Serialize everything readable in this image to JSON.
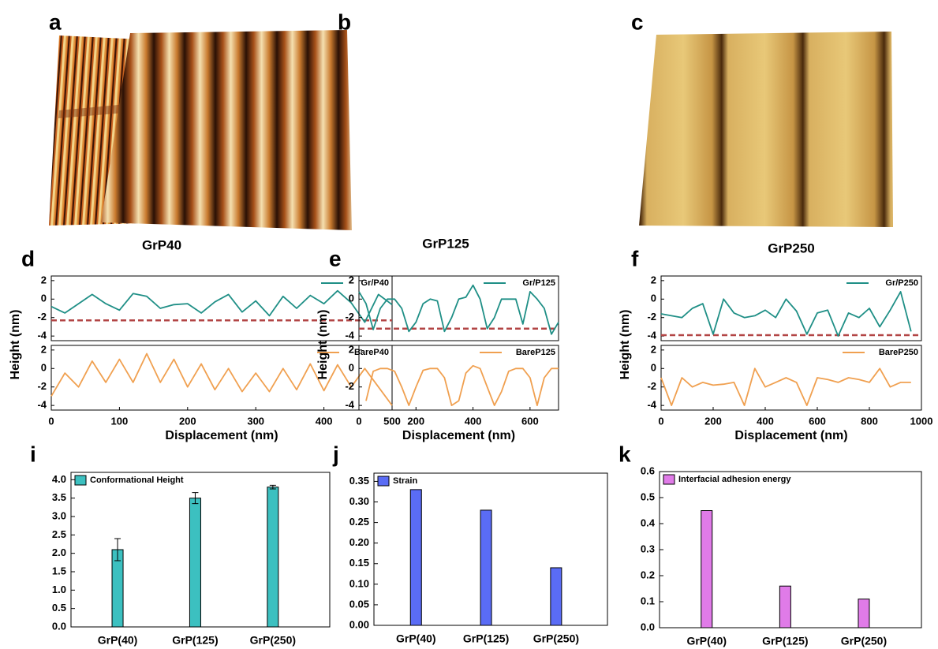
{
  "images": [
    {
      "letter": "a",
      "caption": "GrP40"
    },
    {
      "letter": "b",
      "caption": "GrP125"
    },
    {
      "letter": "c",
      "caption": "GrP250"
    }
  ],
  "chart_data": [
    {
      "type": "line",
      "panel": "d",
      "ylabel": "Height (nm)",
      "xlabel": "Displacement (nm)",
      "x": [
        0,
        20,
        40,
        60,
        80,
        100,
        120,
        140,
        160,
        180,
        200,
        220,
        240,
        260,
        280,
        300,
        320,
        340,
        360,
        380,
        400,
        420,
        440,
        460,
        480,
        500
      ],
      "xlim": [
        0,
        500
      ],
      "xticks": [
        0,
        100,
        200,
        300,
        400,
        500
      ],
      "ylim": [
        -4.5,
        2.5
      ],
      "yticks": [
        -4,
        -2,
        0,
        2
      ],
      "series": [
        {
          "name": "Gr/P40",
          "color": "#1f8f86",
          "baseline": -2.3,
          "baseline_color": "#b24545",
          "values": [
            -0.8,
            -1.5,
            -0.5,
            0.5,
            -0.5,
            -1.2,
            0.6,
            0.3,
            -1,
            -0.6,
            -0.5,
            -1.5,
            -0.3,
            0.5,
            -1.4,
            -0.2,
            -1.8,
            0.3,
            -1.0,
            0.4,
            -0.5,
            0.9,
            -0.4,
            -2.5,
            0.5,
            -0.6
          ]
        },
        {
          "name": "BareP40",
          "color": "#f0a050",
          "values": [
            -3,
            -0.5,
            -2,
            0.8,
            -1.5,
            1,
            -1.5,
            1.6,
            -1.5,
            1,
            -2,
            0.5,
            -2.3,
            0,
            -2.5,
            -0.5,
            -2.5,
            0,
            -2.3,
            0.5,
            -2.4,
            0.4,
            -2,
            0,
            -2,
            -4
          ]
        }
      ]
    },
    {
      "type": "line",
      "panel": "e",
      "ylabel": "Height (nm)",
      "xlabel": "Displacement (nm)",
      "x": [
        0,
        25,
        50,
        75,
        100,
        125,
        150,
        175,
        200,
        225,
        250,
        275,
        300,
        325,
        350,
        375,
        400,
        425,
        450,
        475,
        500,
        525,
        550,
        575,
        600,
        625,
        650,
        675,
        700
      ],
      "xlim": [
        0,
        700
      ],
      "xticks": [
        0,
        200,
        400,
        600
      ],
      "ylim": [
        -4.5,
        2.5
      ],
      "yticks": [
        -4,
        -2,
        0,
        2
      ],
      "series": [
        {
          "name": "Gr/P125",
          "color": "#1f8f86",
          "baseline": -3.2,
          "baseline_color": "#b24545",
          "values": [
            0.8,
            -0.5,
            -3.3,
            -1,
            0,
            0,
            -1,
            -3.5,
            -2.5,
            -0.5,
            0,
            -0.2,
            -3.5,
            -2,
            0,
            0.2,
            1.5,
            0,
            -3.2,
            -2,
            0,
            0,
            0,
            -2.7,
            0.8,
            0,
            -1,
            -3.8,
            -2.5
          ]
        },
        {
          "name": "BareP125",
          "color": "#f0a050",
          "values": [
            null,
            -3.5,
            -0.3,
            0,
            0,
            -0.3,
            -2,
            -4,
            -2,
            -0.2,
            0,
            0,
            -1,
            -4,
            -3.5,
            -0.5,
            0.3,
            0,
            -2,
            -4,
            -2.5,
            -0.3,
            0,
            0,
            -1,
            -4,
            -1,
            0,
            0
          ]
        }
      ]
    },
    {
      "type": "line",
      "panel": "f",
      "ylabel": "Height (nm)",
      "xlabel": "Displacement (nm)",
      "x": [
        0,
        40,
        80,
        120,
        160,
        200,
        240,
        280,
        320,
        360,
        400,
        440,
        480,
        520,
        560,
        600,
        640,
        680,
        720,
        760,
        800,
        840,
        880,
        920,
        960
      ],
      "xlim": [
        0,
        1000
      ],
      "xticks": [
        0,
        200,
        400,
        600,
        800,
        1000
      ],
      "ylim": [
        -4.5,
        2.5
      ],
      "yticks": [
        -4,
        -2,
        0,
        2
      ],
      "series": [
        {
          "name": "Gr/P250",
          "color": "#1f8f86",
          "baseline": -3.9,
          "baseline_color": "#b24545",
          "values": [
            -1.6,
            -1.8,
            -2,
            -1,
            -0.5,
            -3.8,
            0,
            -1.5,
            -2,
            -1.8,
            -1.2,
            -2,
            0,
            -1.3,
            -3.8,
            -1.5,
            -1.2,
            -4,
            -1.5,
            -2,
            -1,
            -3,
            -1.2,
            0.8,
            -3.5
          ]
        },
        {
          "name": "BareP250",
          "color": "#f0a050",
          "values": [
            -1,
            -4,
            -1,
            -2,
            -1.5,
            -1.8,
            -1.7,
            -1.5,
            -4,
            0,
            -2,
            -1.5,
            -1,
            -1.5,
            -4,
            -1,
            -1.2,
            -1.5,
            -1,
            -1.2,
            -1.5,
            0,
            -2,
            -1.5,
            -1.5
          ]
        }
      ]
    },
    {
      "type": "bar",
      "panel": "i",
      "categories": [
        "GrP(40)",
        "GrP(125)",
        "GrP(250)"
      ],
      "series": [
        {
          "name": "Conformational Height",
          "color": "#3cc0c0",
          "values": [
            2.1,
            3.5,
            3.8
          ],
          "errors": [
            0.3,
            0.15,
            0.05
          ]
        }
      ],
      "ylim": [
        0,
        4.2
      ],
      "yticks": [
        {
          "value": 0,
          "label": "0.0"
        },
        {
          "value": 0.5,
          "label": "0.5"
        },
        {
          "value": 1,
          "label": "1.0"
        },
        {
          "value": 1.5,
          "label": "1.5"
        },
        {
          "value": 2,
          "label": "2.0"
        },
        {
          "value": 2.5,
          "label": "2.5"
        },
        {
          "value": 3,
          "label": "3.0"
        },
        {
          "value": 3.5,
          "label": "3.5"
        },
        {
          "value": 4,
          "label": "4.0"
        }
      ]
    },
    {
      "type": "bar",
      "panel": "j",
      "categories": [
        "GrP(40)",
        "GrP(125)",
        "GrP(250)"
      ],
      "series": [
        {
          "name": "Strain",
          "color": "#5a6cf5",
          "values": [
            0.33,
            0.28,
            0.14
          ]
        }
      ],
      "ylim": [
        0,
        0.37
      ],
      "yticks": [
        {
          "value": 0,
          "label": "0.00"
        },
        0.05,
        {
          "value": 0.1,
          "label": "0.10"
        },
        0.15,
        {
          "value": 0.2,
          "label": "0.20"
        },
        0.25,
        {
          "value": 0.3,
          "label": "0.30"
        },
        0.35
      ]
    },
    {
      "type": "bar",
      "panel": "k",
      "categories": [
        "GrP(40)",
        "GrP(125)",
        "GrP(250)"
      ],
      "series": [
        {
          "name": "Interfacial adhesion energy",
          "color": "#e07be8",
          "values": [
            0.45,
            0.16,
            0.11
          ]
        }
      ],
      "ylim": [
        0,
        0.6
      ],
      "yticks": [
        {
          "value": 0,
          "label": "0.0"
        },
        0.1,
        0.2,
        0.3,
        0.4,
        0.5,
        0.6
      ]
    }
  ]
}
